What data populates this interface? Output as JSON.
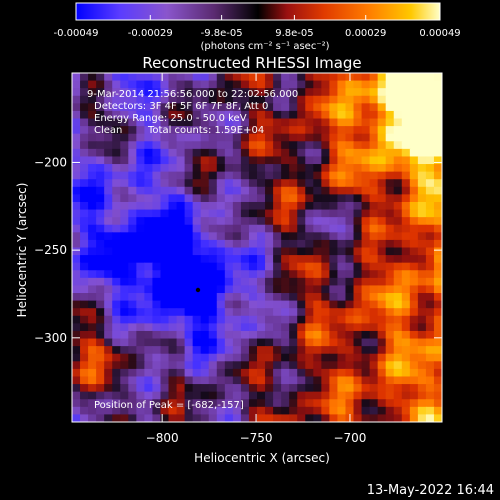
{
  "colorbar": {
    "ticks": [
      "-0.00049",
      "-0.00029",
      "-9.8e-05",
      "9.8e-05",
      "0.00029",
      "0.00049"
    ],
    "tick_values": [
      -0.00049,
      -0.00029,
      -9.8e-05,
      9.8e-05,
      0.00029,
      0.00049
    ],
    "units_label": "(photons cm⁻² s⁻¹ asec⁻²)",
    "range": [
      -0.00049,
      0.00049
    ],
    "palette": [
      "#0000ff",
      "#5a3cff",
      "#8a55cc",
      "#5a2a70",
      "#000000",
      "#9a1010",
      "#e03a00",
      "#ff7a00",
      "#ffc800",
      "#ffffc8"
    ]
  },
  "chart_data": {
    "type": "heatmap",
    "title": "Reconstructed RHESSI Image",
    "xlabel": "Heliocentric X (arcsec)",
    "ylabel": "Heliocentric Y (arcsec)",
    "xlim": [
      -848,
      -651
    ],
    "ylim": [
      -348,
      -149
    ],
    "x_ticks": [
      -800,
      -750,
      -700
    ],
    "x_tick_labels": [
      "−800",
      "−750",
      "−700"
    ],
    "y_ticks": [
      -200,
      -250,
      -300
    ],
    "y_tick_labels": [
      "−200",
      "−250",
      "−300"
    ],
    "annotations": {
      "time_range": "9-Mar-2014 21:56:56.000 to 22:02:56.000",
      "detectors": "Detectors: 3F 4F 5F 6F 7F 8F, Att 0",
      "energy": "Energy Range: 25.0 - 50.0 keV",
      "algorithm": "Clean",
      "counts": "Total counts: 1.59E+04",
      "peak": "Position of Peak = [-682,-157]"
    },
    "grid": false,
    "colorscale": "blue-purple-black-red-yellow-white"
  },
  "footer": {
    "timestamp": "13-May-2022 16:44"
  }
}
